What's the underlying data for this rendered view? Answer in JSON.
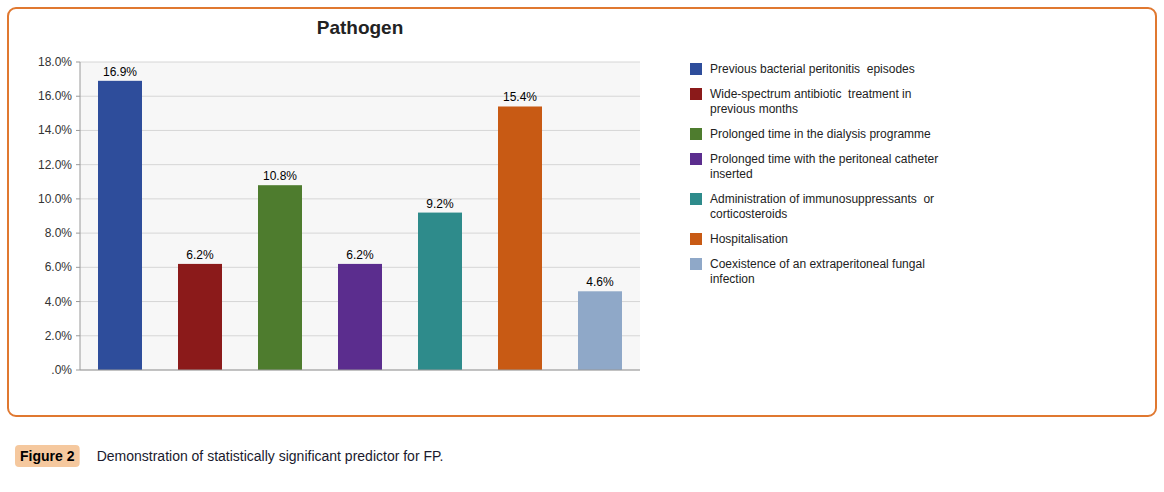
{
  "chart_data": {
    "type": "bar",
    "title": "Pathogen",
    "categories": [
      "Previous bacterial peritonitis  episodes",
      "Wide-spectrum antibiotic  treatment in\nprevious months",
      "Prolonged time in the dialysis programme",
      "Prolonged time with the peritoneal catheter\ninserted",
      "Administration of immunosuppressants  or\ncorticosteroids",
      "Hospitalisation",
      "Coexistence of an extraperitoneal fungal\ninfection"
    ],
    "values": [
      16.9,
      6.2,
      10.8,
      6.2,
      9.2,
      15.4,
      4.6
    ],
    "value_labels": [
      "16.9%",
      "6.2%",
      "10.8%",
      "6.2%",
      "9.2%",
      "15.4%",
      "4.6%"
    ],
    "data_labels": true,
    "colors": [
      "#2e4d9b",
      "#8b1a1a",
      "#4e7c2e",
      "#5b2d8e",
      "#2e8b8b",
      "#c85a14",
      "#8fa8c8"
    ],
    "ylim": [
      0,
      18.0
    ],
    "yticks": [
      {
        "value": 0,
        "label": ".0%"
      },
      {
        "value": 2,
        "label": "2.0%"
      },
      {
        "value": 4,
        "label": "4.0%"
      },
      {
        "value": 6,
        "label": "6.0%"
      },
      {
        "value": 8,
        "label": "8.0%"
      },
      {
        "value": 10,
        "label": "10.0%"
      },
      {
        "value": 12,
        "label": "12.0%"
      },
      {
        "value": 14,
        "label": "14.0%"
      },
      {
        "value": 16,
        "label": "16.0%"
      },
      {
        "value": 18,
        "label": "18.0%"
      }
    ],
    "grid": true,
    "tick_labels": "y",
    "legend": "right",
    "annotations": [
      "Figure 2",
      "Demonstration of statistically significant predictor for FP."
    ]
  }
}
